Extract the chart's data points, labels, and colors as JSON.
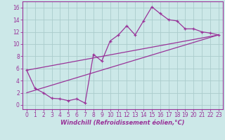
{
  "xlabel": "Windchill (Refroidissement éolien,°C)",
  "bg_color": "#cce8e8",
  "line_color": "#993399",
  "grid_color": "#aacccc",
  "xlim": [
    -0.5,
    23.5
  ],
  "ylim": [
    -0.7,
    17.0
  ],
  "xticks": [
    0,
    1,
    2,
    3,
    4,
    5,
    6,
    7,
    8,
    9,
    10,
    11,
    12,
    13,
    14,
    15,
    16,
    17,
    18,
    19,
    20,
    21,
    22,
    23
  ],
  "yticks": [
    0,
    2,
    4,
    6,
    8,
    10,
    12,
    14,
    16
  ],
  "line1_x": [
    0,
    1,
    2,
    3,
    4,
    5,
    6,
    7,
    8,
    9,
    10,
    11,
    12,
    13,
    14,
    15,
    16,
    17,
    18,
    19,
    20,
    21,
    22,
    23
  ],
  "line1_y": [
    5.7,
    2.7,
    2.0,
    1.1,
    1.0,
    0.7,
    1.0,
    0.3,
    8.3,
    7.2,
    10.5,
    11.5,
    13.0,
    11.5,
    13.8,
    16.1,
    15.0,
    14.0,
    13.8,
    12.5,
    12.5,
    12.0,
    11.8,
    11.5
  ],
  "line2_x": [
    0,
    23
  ],
  "line2_y": [
    5.7,
    11.5
  ],
  "line3_x": [
    0,
    23
  ],
  "line3_y": [
    2.0,
    11.5
  ],
  "tick_fontsize": 5.5,
  "label_fontsize": 6.0
}
